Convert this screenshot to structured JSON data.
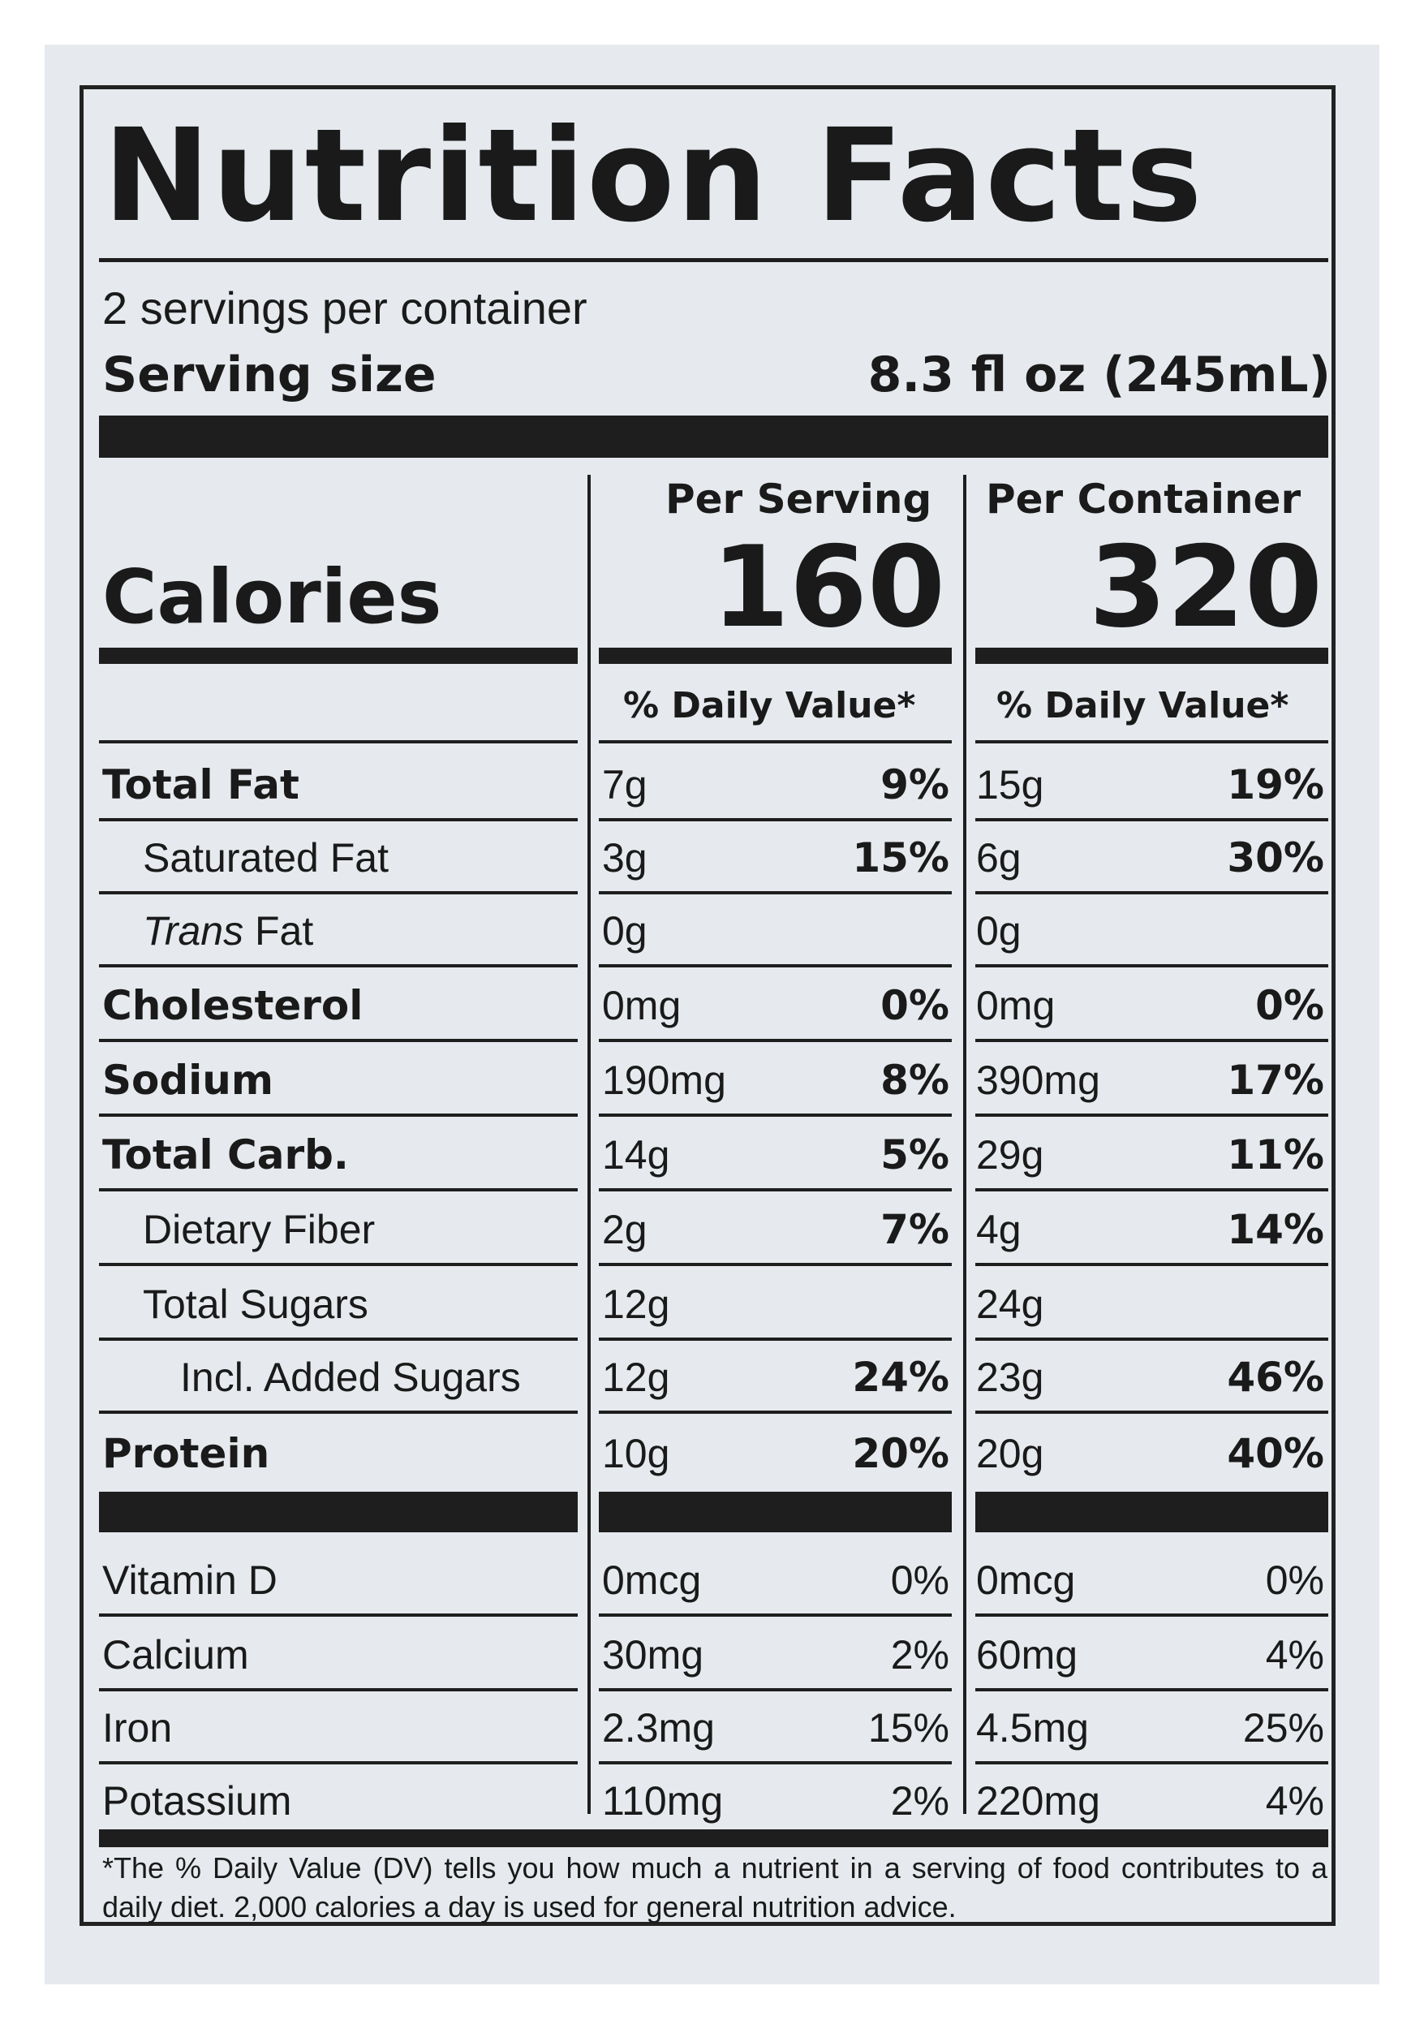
{
  "title": "Nutrition Facts",
  "servings_per_container": "2 servings per container",
  "serving_size": {
    "label": "Serving size",
    "value": "8.3 fl oz (245mL)"
  },
  "columns": {
    "per_serving": {
      "heading": "Per Serving",
      "calories": "160",
      "dv_heading": "% Daily Value*"
    },
    "per_container": {
      "heading": "Per Container",
      "calories": "320",
      "dv_heading": "% Daily Value*"
    }
  },
  "calories_label": "Calories",
  "nutrients": [
    {
      "name": "Total Fat",
      "style": "bold",
      "serv_amt": "7g",
      "serv_dv": "9%",
      "cont_amt": "15g",
      "cont_dv": "19%"
    },
    {
      "name": "Saturated Fat",
      "style": "indent1",
      "serv_amt": "3g",
      "serv_dv": "15%",
      "cont_amt": "6g",
      "cont_dv": "30%"
    },
    {
      "name": "Trans",
      "name_suffix": " Fat",
      "style": "indent1-italic",
      "serv_amt": "0g",
      "serv_dv": "",
      "cont_amt": "0g",
      "cont_dv": ""
    },
    {
      "name": "Cholesterol",
      "style": "bold",
      "serv_amt": "0mg",
      "serv_dv": "0%",
      "cont_amt": "0mg",
      "cont_dv": "0%"
    },
    {
      "name": "Sodium",
      "style": "bold",
      "serv_amt": "190mg",
      "serv_dv": "8%",
      "cont_amt": "390mg",
      "cont_dv": "17%"
    },
    {
      "name": "Total Carb.",
      "style": "bold",
      "serv_amt": "14g",
      "serv_dv": "5%",
      "cont_amt": "29g",
      "cont_dv": "11%"
    },
    {
      "name": "Dietary Fiber",
      "style": "indent1",
      "serv_amt": "2g",
      "serv_dv": "7%",
      "cont_amt": "4g",
      "cont_dv": "14%"
    },
    {
      "name": "Total Sugars",
      "style": "indent1",
      "serv_amt": "12g",
      "serv_dv": "",
      "cont_amt": "24g",
      "cont_dv": ""
    },
    {
      "name": "Incl. Added Sugars",
      "style": "indent2",
      "serv_amt": "12g",
      "serv_dv": "24%",
      "cont_amt": "23g",
      "cont_dv": "46%"
    },
    {
      "name": "Protein",
      "style": "bold",
      "serv_amt": "10g",
      "serv_dv": "20%",
      "cont_amt": "20g",
      "cont_dv": "40%"
    }
  ],
  "vitamins": [
    {
      "name": "Vitamin D",
      "serv_amt": "0mcg",
      "serv_dv": "0%",
      "cont_amt": "0mcg",
      "cont_dv": "0%"
    },
    {
      "name": "Calcium",
      "serv_amt": "30mg",
      "serv_dv": "2%",
      "cont_amt": "60mg",
      "cont_dv": "4%"
    },
    {
      "name": "Iron",
      "serv_amt": "2.3mg",
      "serv_dv": "15%",
      "cont_amt": "4.5mg",
      "cont_dv": "25%"
    },
    {
      "name": "Potassium",
      "serv_amt": "110mg",
      "serv_dv": "2%",
      "cont_amt": "220mg",
      "cont_dv": "4%"
    }
  ],
  "footnote": "*The % Daily Value (DV) tells you how much a nutrient in a serving of food contributes to a daily diet. 2,000 calories a day is used for general nutrition advice."
}
